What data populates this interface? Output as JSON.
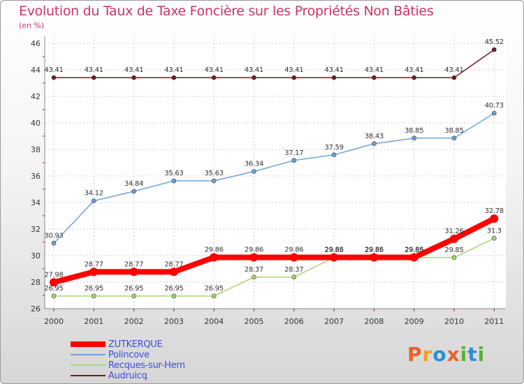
{
  "title": "Evolution du Taux de Taxe Foncière sur les Propriétés Non Bâties",
  "unit_label": "(en %)",
  "logo": {
    "text": "Proxiti",
    "letters": [
      {
        "ch": "P",
        "color": "#e8622c"
      },
      {
        "ch": "r",
        "color": "#f0a020"
      },
      {
        "ch": "o",
        "color": "#2b8ed6"
      },
      {
        "ch": "x",
        "color": "#e8622c"
      },
      {
        "ch": "i",
        "color": "#5ab031"
      },
      {
        "ch": "t",
        "color": "#2b8ed6"
      },
      {
        "ch": "i",
        "color": "#5ab031"
      }
    ]
  },
  "chart_data": {
    "type": "line",
    "title": "Evolution du Taux de Taxe Foncière sur les Propriétés Non Bâties",
    "ylabel": "(en %)",
    "x": [
      "2000",
      "2001",
      "2002",
      "2003",
      "2004",
      "2005",
      "2006",
      "2007",
      "2008",
      "2009",
      "2010",
      "2011"
    ],
    "ylim": [
      26,
      46
    ],
    "yticks": [
      "26",
      "28",
      "30",
      "32",
      "34",
      "36",
      "38",
      "40",
      "42",
      "44",
      "46"
    ],
    "grid": true,
    "series": [
      {
        "name": "Audruicq",
        "color": "#6b1f1f",
        "width": 1.5,
        "values": [
          43.41,
          43.41,
          43.41,
          43.41,
          43.41,
          43.41,
          43.41,
          43.41,
          43.41,
          43.41,
          43.41,
          45.52
        ],
        "labels": [
          "43.41",
          "43.41",
          "43.41",
          "43.41",
          "43.41",
          "43.41",
          "43.41",
          "43.41",
          "43.41",
          "43.41",
          "43.41",
          "45.52"
        ]
      },
      {
        "name": "Polincove",
        "color": "#6fa3d8",
        "width": 1.5,
        "values": [
          30.93,
          34.12,
          34.84,
          35.63,
          35.63,
          36.34,
          37.17,
          37.59,
          38.43,
          38.85,
          38.85,
          40.73
        ],
        "labels": [
          "30.93",
          "34.12",
          "34.84",
          "35.63",
          "35.63",
          "36.34",
          "37.17",
          "37.59",
          "38.43",
          "38.85",
          "38.85",
          "40.73"
        ]
      },
      {
        "name": "Recques-sur-Hem",
        "color": "#a8d870",
        "width": 1.5,
        "values": [
          26.95,
          26.95,
          26.95,
          26.95,
          26.95,
          28.37,
          28.37,
          29.85,
          29.85,
          29.85,
          29.85,
          31.3
        ],
        "labels": [
          "26.95",
          "26.95",
          "26.95",
          "26.95",
          "26.95",
          "28.37",
          "28.37",
          "29.85",
          "29.85",
          "29.85",
          "29.85",
          "31.3"
        ]
      },
      {
        "name": "ZUTKERQUE",
        "color": "#ff0000",
        "width": 8,
        "values": [
          27.98,
          28.77,
          28.77,
          28.77,
          29.86,
          29.86,
          29.86,
          29.86,
          29.86,
          29.86,
          31.26,
          32.78
        ],
        "labels": [
          "27.98",
          "28.77",
          "28.77",
          "28.77",
          "29.86",
          "29.86",
          "29.86",
          "29.86",
          "29.86",
          "29.86",
          "31.26",
          "32.78"
        ]
      }
    ],
    "legend_order": [
      "ZUTKERQUE",
      "Polincove",
      "Recques-sur-Hem",
      "Audruicq"
    ],
    "legend_position": "bottom-left"
  }
}
